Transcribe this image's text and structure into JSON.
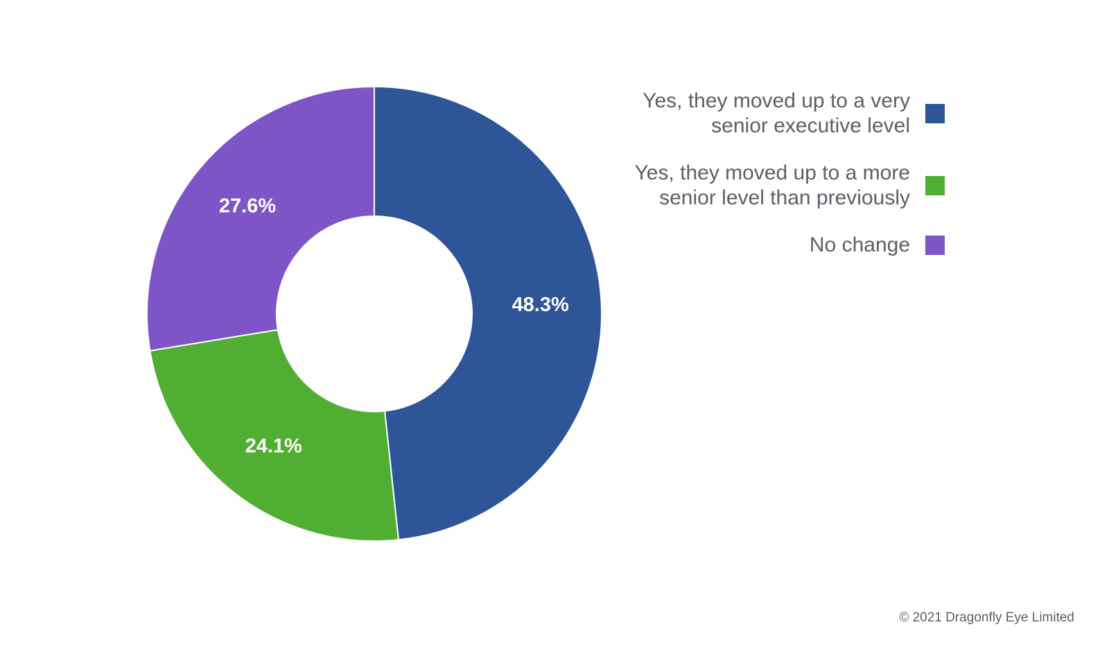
{
  "chart_data": {
    "type": "pie",
    "donut": true,
    "slices": [
      {
        "label": "Yes, they moved up to a very senior executive level",
        "value": 48.3,
        "display": "48.3%",
        "color": "#2e5597"
      },
      {
        "label": "Yes, they moved up to a more senior level than previously",
        "value": 24.1,
        "display": "24.1%",
        "color": "#50af32"
      },
      {
        "label": "No change",
        "value": 27.6,
        "display": "27.6%",
        "color": "#7e55c6"
      }
    ],
    "legend_position": "right"
  },
  "legend": {
    "items": [
      {
        "label": "Yes, they moved up to a very senior executive level",
        "color": "#2e5597"
      },
      {
        "label": "Yes, they moved up to a more senior level than previously",
        "color": "#50af32"
      },
      {
        "label": "No change",
        "color": "#7e55c6"
      }
    ]
  },
  "footer": {
    "copyright": "© 2021 Dragonfly Eye Limited"
  }
}
